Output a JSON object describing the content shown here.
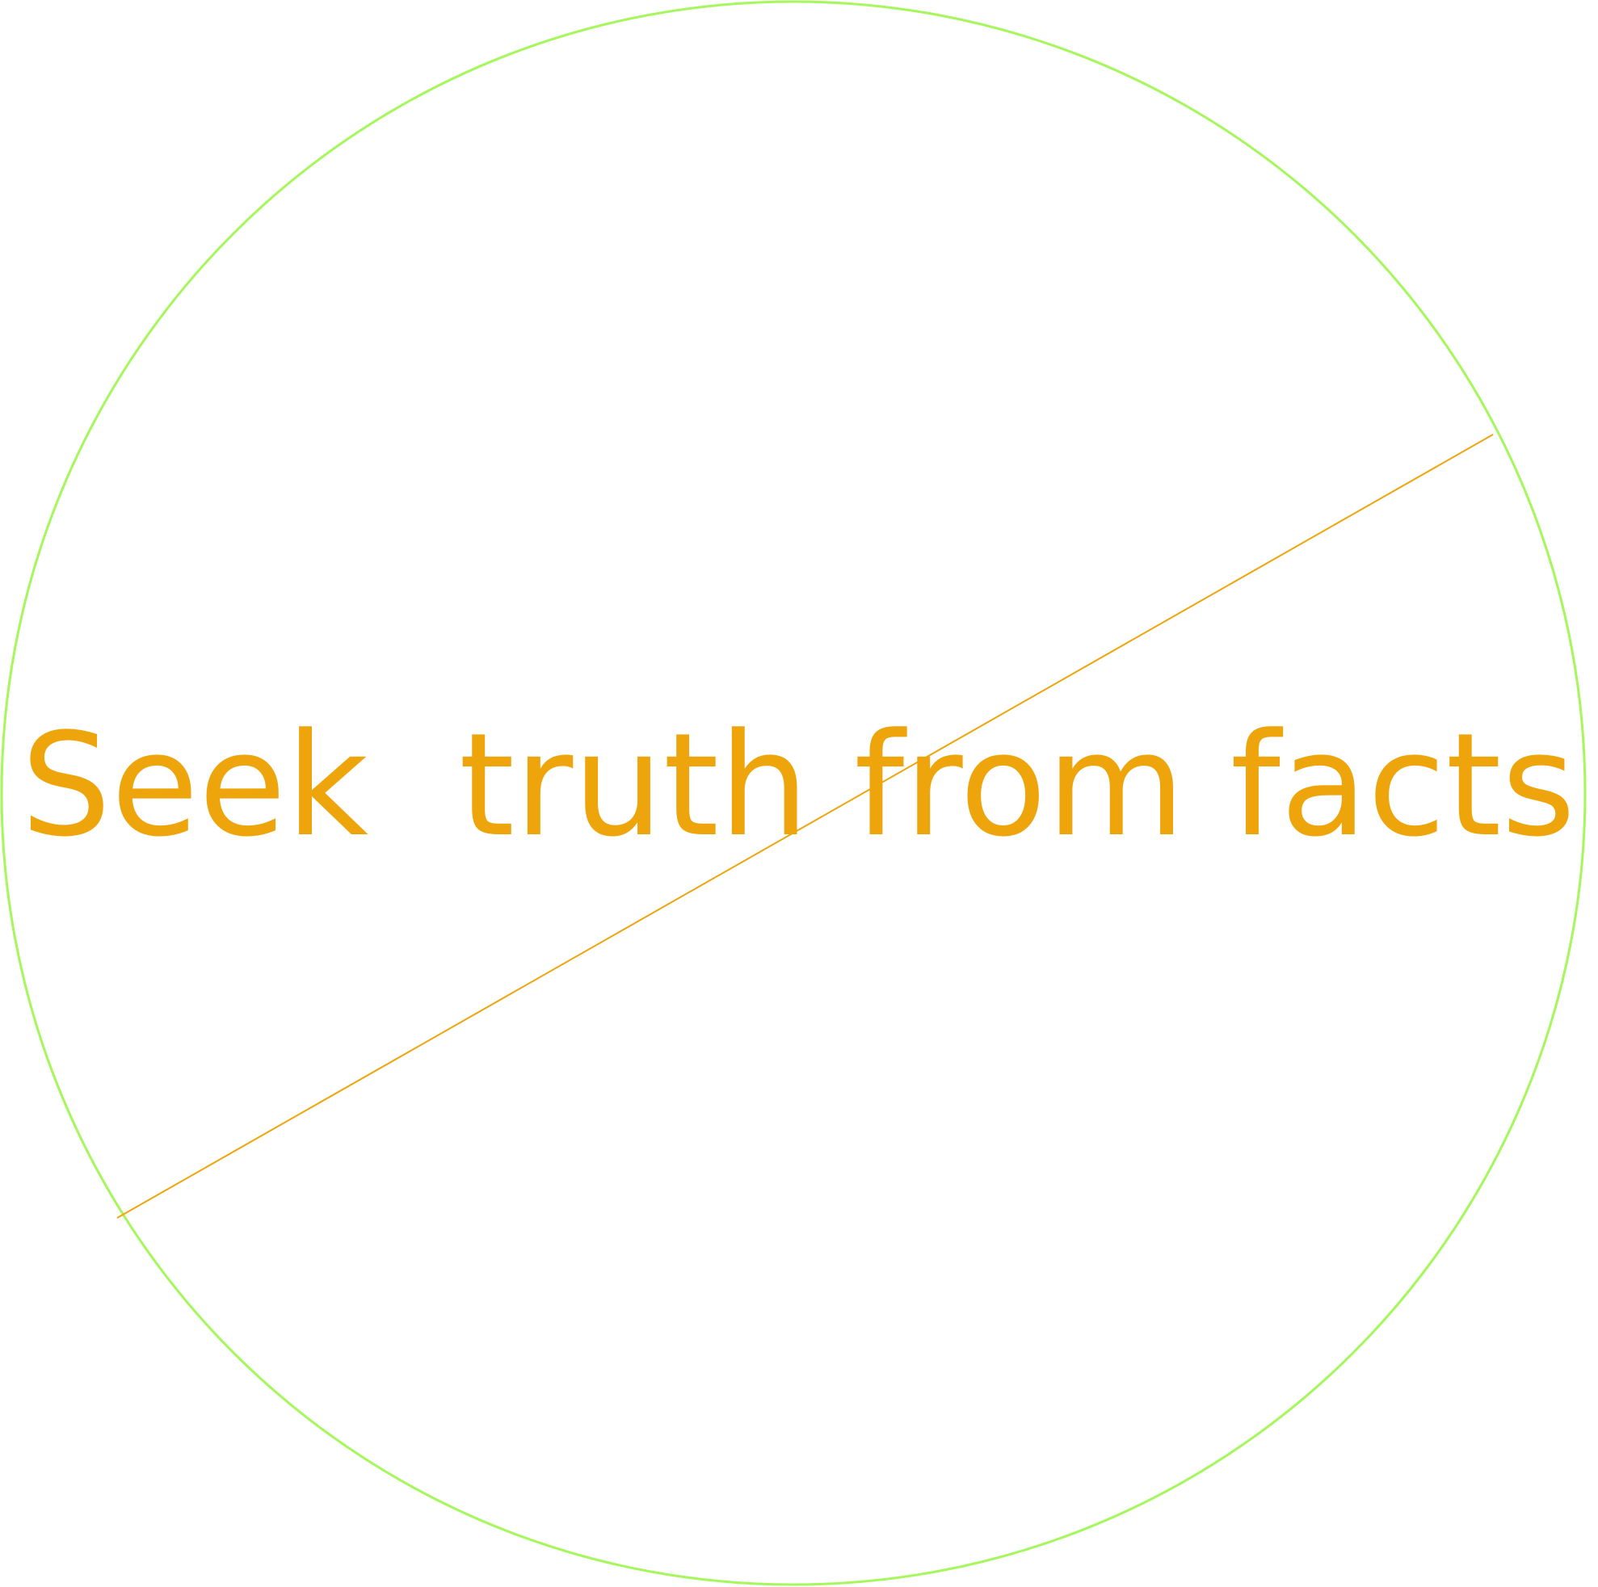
{
  "diagram": {
    "caption": "Seek  truth from facts",
    "colors": {
      "circle": "#a5f75c",
      "line": "#eea50b",
      "caption": "#eea50b",
      "background": "#ffffff"
    }
  }
}
